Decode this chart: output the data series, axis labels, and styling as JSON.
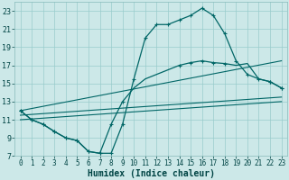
{
  "xlabel": "Humidex (Indice chaleur)",
  "xlim": [
    -0.5,
    23.5
  ],
  "ylim": [
    7,
    24
  ],
  "yticks": [
    7,
    9,
    11,
    13,
    15,
    17,
    19,
    21,
    23
  ],
  "xticks": [
    0,
    1,
    2,
    3,
    4,
    5,
    6,
    7,
    8,
    9,
    10,
    11,
    12,
    13,
    14,
    15,
    16,
    17,
    18,
    19,
    20,
    21,
    22,
    23
  ],
  "bg_color": "#cce8e8",
  "line_color": "#006666",
  "grid_color": "#99cccc",
  "curve_main_x": [
    0,
    1,
    2,
    3,
    4,
    5,
    6,
    7,
    8,
    9,
    10,
    11,
    12,
    13,
    14,
    15,
    16,
    17,
    18,
    19,
    20,
    21,
    22,
    23
  ],
  "curve_main_y": [
    12.0,
    11.0,
    10.5,
    9.7,
    9.0,
    8.7,
    7.5,
    7.3,
    7.3,
    10.5,
    15.5,
    20.0,
    21.5,
    21.5,
    22.0,
    22.5,
    23.3,
    22.5,
    20.5,
    17.5,
    16.0,
    15.5,
    15.2,
    14.5
  ],
  "curve_secondary_x": [
    0,
    1,
    2,
    3,
    4,
    5,
    6,
    7,
    8,
    9,
    10,
    11,
    12,
    13,
    14,
    15,
    16,
    17,
    18,
    19,
    20,
    21,
    22,
    23
  ],
  "curve_secondary_y": [
    12.0,
    11.0,
    10.5,
    9.7,
    9.0,
    8.7,
    7.5,
    7.3,
    10.5,
    13.0,
    14.5,
    15.5,
    16.0,
    16.5,
    17.0,
    17.3,
    17.5,
    17.3,
    17.2,
    17.0,
    17.2,
    15.5,
    15.2,
    14.5
  ],
  "line1_x": [
    0,
    23
  ],
  "line1_y": [
    12.0,
    17.5
  ],
  "line2_x": [
    0,
    23
  ],
  "line2_y": [
    11.5,
    13.5
  ],
  "line3_x": [
    0,
    23
  ],
  "line3_y": [
    11.0,
    13.0
  ],
  "markers_main_x": [
    0,
    1,
    2,
    3,
    4,
    5,
    6,
    7,
    8,
    9,
    10,
    11,
    12,
    13,
    14,
    15,
    16,
    17,
    18,
    19,
    20,
    21,
    22,
    23
  ],
  "markers_main_y": [
    12.0,
    11.0,
    10.5,
    9.7,
    9.0,
    8.7,
    7.5,
    7.3,
    7.3,
    10.5,
    15.5,
    20.0,
    21.5,
    21.5,
    22.0,
    22.5,
    23.3,
    22.5,
    20.5,
    17.5,
    16.0,
    15.5,
    15.2,
    14.5
  ],
  "markers_sec_x": [
    0,
    1,
    2,
    3,
    4,
    5,
    6,
    7,
    8,
    9,
    14,
    15,
    16,
    17,
    18,
    22,
    23
  ],
  "markers_sec_y": [
    12.0,
    11.0,
    10.5,
    9.7,
    9.0,
    8.7,
    7.5,
    7.3,
    10.5,
    13.0,
    17.0,
    17.3,
    17.5,
    17.3,
    17.2,
    15.2,
    14.5
  ]
}
